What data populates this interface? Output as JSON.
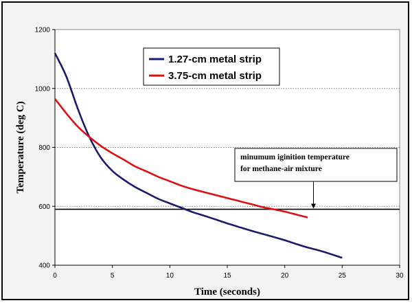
{
  "chart_data": {
    "type": "line",
    "xlabel": "Time (seconds)",
    "ylabel": "Temperature (deg C)",
    "xlim": [
      0,
      30
    ],
    "ylim": [
      400,
      1200
    ],
    "xticks": [
      "0",
      "5",
      "10",
      "15",
      "20",
      "25",
      "30"
    ],
    "yticks": [
      "400",
      "600",
      "800",
      "1000",
      "1200"
    ],
    "grid": "horizontal dotted",
    "legend_position": "top-center",
    "colors": {
      "series_1": "#1a1a6e",
      "series_2": "#e01010",
      "threshold": "#000000",
      "plot_bg": "#ffffff",
      "chart_bg": "#f3f3f3"
    },
    "series": [
      {
        "name": "1.27-cm metal strip",
        "x": [
          0,
          1,
          2,
          3,
          4,
          5,
          6,
          7,
          8,
          9,
          10,
          11,
          12,
          13,
          14,
          15,
          16,
          17,
          18,
          19,
          20,
          21,
          22,
          23,
          24,
          25
        ],
        "y": [
          1120,
          1040,
          930,
          835,
          765,
          720,
          690,
          665,
          645,
          625,
          610,
          595,
          580,
          568,
          555,
          542,
          530,
          518,
          507,
          496,
          485,
          472,
          460,
          450,
          438,
          425
        ]
      },
      {
        "name": "3.75-cm metal strip",
        "x": [
          0,
          1,
          2,
          3,
          4,
          5,
          6,
          7,
          8,
          9,
          10,
          11,
          12,
          13,
          14,
          15,
          16,
          17,
          18,
          19,
          20,
          21,
          22
        ],
        "y": [
          965,
          915,
          870,
          835,
          805,
          780,
          758,
          735,
          718,
          700,
          685,
          670,
          658,
          648,
          638,
          628,
          618,
          608,
          598,
          590,
          582,
          572,
          562
        ]
      }
    ],
    "threshold": {
      "value": 590
    },
    "annotation": {
      "lines": [
        "minumum iginition temperature",
        "for methane-air mixture"
      ],
      "arrow_x": 22.5
    }
  }
}
